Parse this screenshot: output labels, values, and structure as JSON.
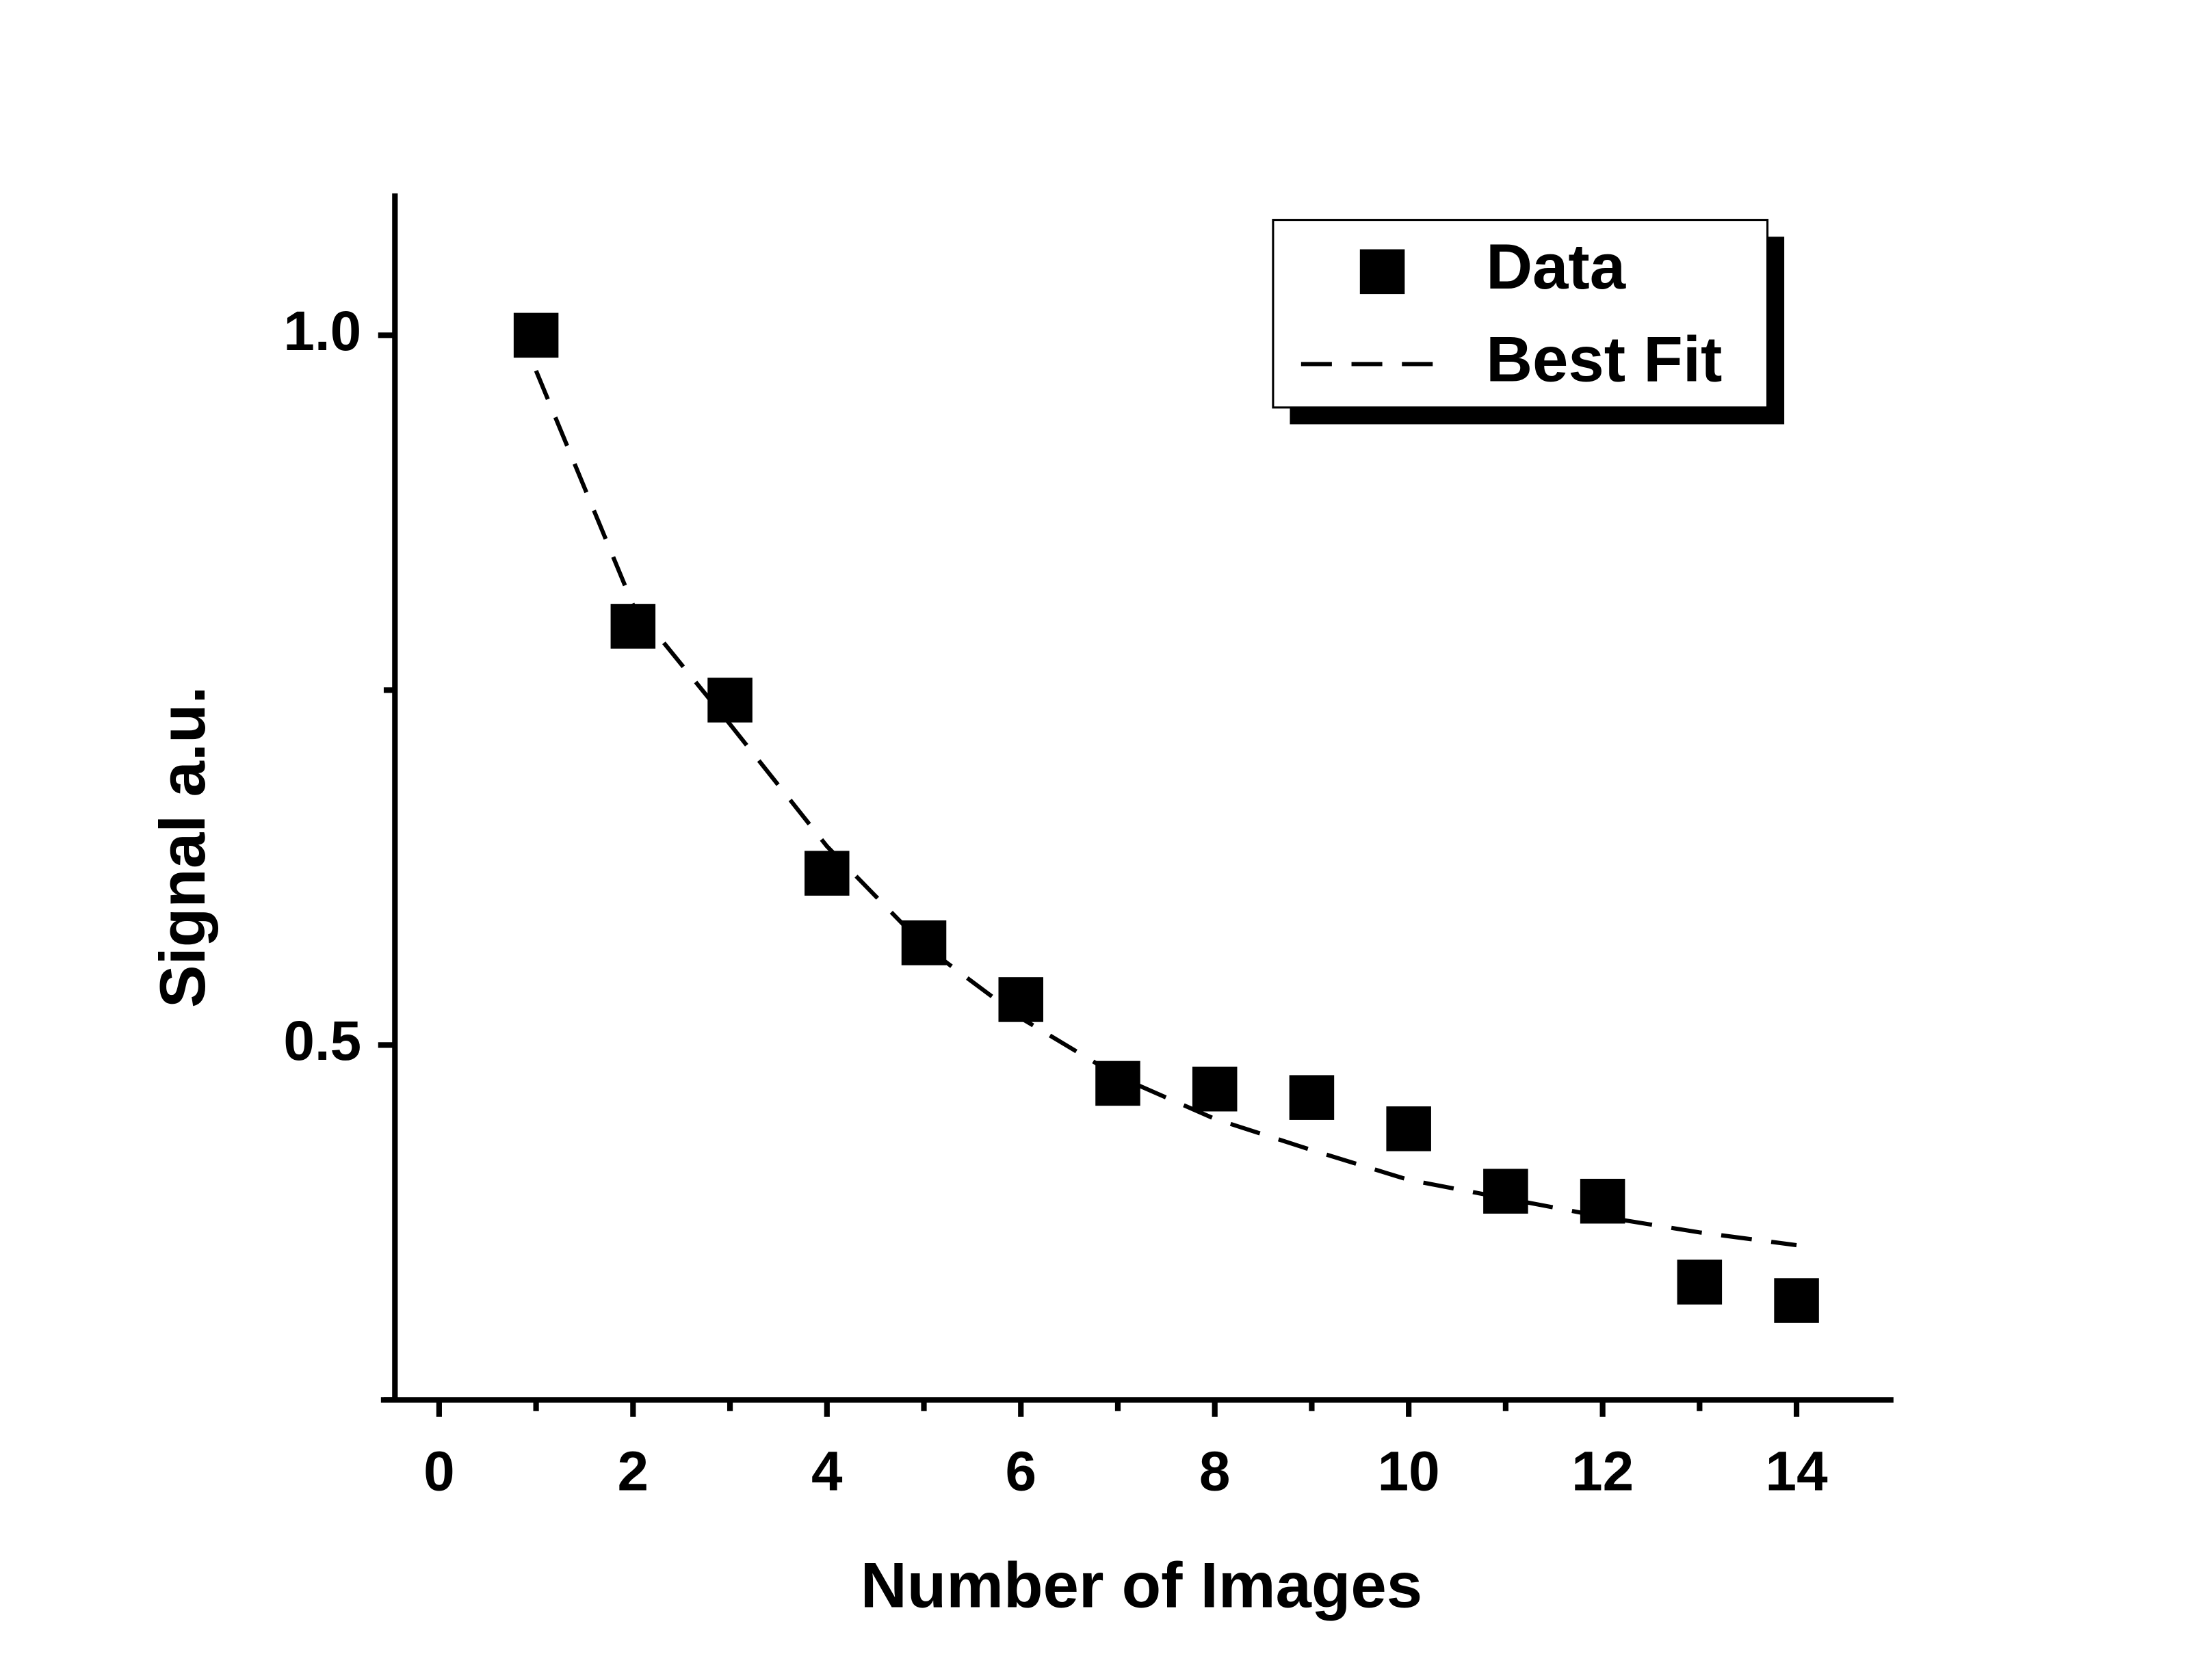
{
  "chart_data": {
    "type": "scatter",
    "x_label": "Number of Images",
    "y_label": "Signal a.u.",
    "xlim": [
      -0.6,
      15
    ],
    "ylim": [
      0.25,
      1.1
    ],
    "xticks": [
      0,
      2,
      4,
      6,
      8,
      10,
      12,
      14
    ],
    "minor_xticks": [
      1,
      3,
      5,
      7,
      9,
      11,
      13
    ],
    "yticks": [
      0.5,
      {
        "value": 1,
        "label": "1.0"
      }
    ],
    "minor_yticks": [
      0.25,
      0.75
    ],
    "legend": "upper right",
    "series": [
      {
        "name": "Data",
        "type": "scatter",
        "color": "#000000",
        "x": [
          1,
          2,
          3,
          4,
          5,
          6,
          7,
          8,
          9,
          10,
          11,
          12,
          13,
          14
        ],
        "values": [
          1.0,
          0.795,
          0.743,
          0.621,
          0.572,
          0.532,
          0.473,
          0.469,
          0.463,
          0.441,
          0.397,
          0.39,
          0.333,
          0.32
        ]
      },
      {
        "name": "Best Fit",
        "type": "line",
        "dashed": true,
        "color": "#000000",
        "x": [
          1,
          2,
          3,
          4,
          5,
          6,
          7,
          8,
          9,
          10,
          11,
          12,
          13,
          14
        ],
        "values": [
          0.975,
          0.81,
          0.726,
          0.64,
          0.57,
          0.519,
          0.478,
          0.448,
          0.426,
          0.405,
          0.392,
          0.379,
          0.368,
          0.359
        ]
      }
    ]
  }
}
